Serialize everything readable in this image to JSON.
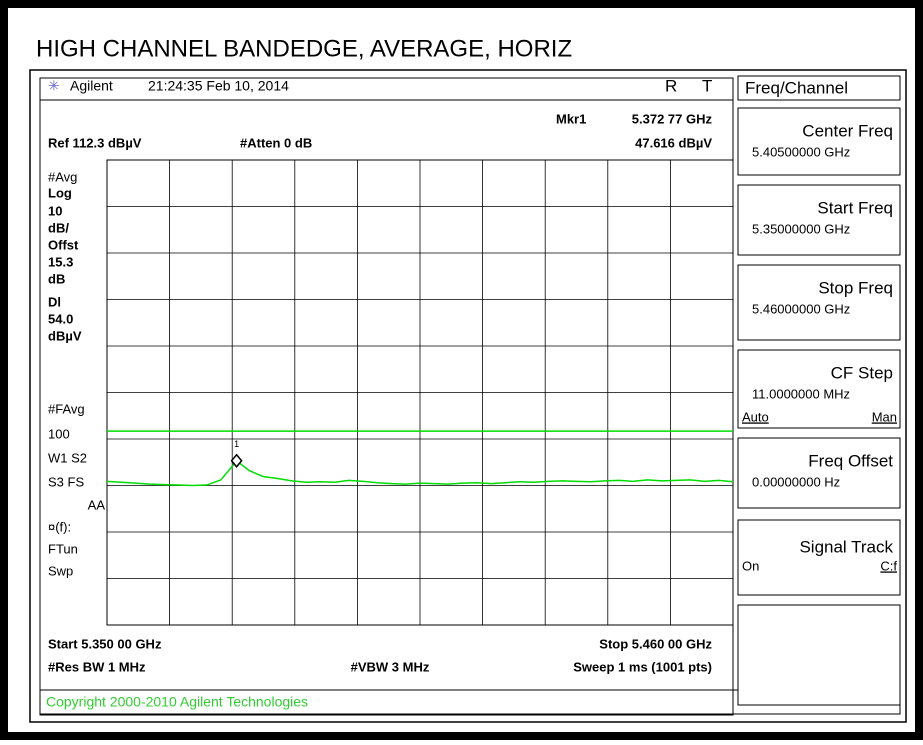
{
  "title": "HIGH CHANNEL BANDEDGE, AVERAGE, HORIZ",
  "header": {
    "brand": "Agilent",
    "timestamp": "21:24:35  Feb 10, 2014",
    "r": "R",
    "t": "T"
  },
  "status": {
    "ref": "Ref 112.3 dBµV",
    "atten": "#Atten 0 dB"
  },
  "left_panel": [
    "#Avg",
    "Log",
    "10",
    "dB/",
    "Offst",
    "15.3",
    "dB",
    "Dl",
    "54.0",
    "dBµV",
    "#FAvg",
    "100",
    "W1  S2",
    "S3  FS",
    "AA",
    "¤(f):",
    "FTun",
    "Swp"
  ],
  "footer": {
    "start": "Start 5.350 00 GHz",
    "stop": "Stop 5.460 00 GHz",
    "rbw": "#Res BW 1 MHz",
    "vbw": "#VBW 3 MHz",
    "sweep": "Sweep 1 ms (1001 pts)",
    "copyright": "Copyright 2000-2010 Agilent Technologies"
  },
  "softkeys": {
    "title": "Freq/Channel",
    "keys": [
      {
        "label": "Center Freq",
        "value": "5.40500000 GHz"
      },
      {
        "label": "Start Freq",
        "value": "5.35000000 GHz"
      },
      {
        "label": "Stop Freq",
        "value": "5.46000000 GHz"
      },
      {
        "label": "CF Step",
        "value": "11.0000000 MHz",
        "options": [
          "Auto",
          "Man"
        ]
      },
      {
        "label": "Freq Offset",
        "value": "0.00000000  Hz"
      },
      {
        "label": "Signal Track",
        "options": [
          "On",
          "C:f"
        ]
      }
    ]
  },
  "chart_data": {
    "type": "line",
    "x": [
      5.35,
      5.3525,
      5.355,
      5.3575,
      5.36,
      5.3625,
      5.365,
      5.3675,
      5.37,
      5.3728,
      5.375,
      5.3775,
      5.38,
      5.3825,
      5.385,
      5.3875,
      5.39,
      5.3925,
      5.395,
      5.3975,
      5.4,
      5.4025,
      5.405,
      5.4075,
      5.41,
      5.4125,
      5.415,
      5.4175,
      5.42,
      5.4225,
      5.425,
      5.4275,
      5.43,
      5.4325,
      5.435,
      5.4375,
      5.44,
      5.4425,
      5.445,
      5.4475,
      5.45,
      5.4525,
      5.455,
      5.4575,
      5.46
    ],
    "series": [
      {
        "color": "#00dd00",
        "values": [
          43.2,
          43.0,
          42.8,
          42.6,
          42.5,
          42.4,
          42.3,
          42.4,
          43.5,
          47.6,
          45.5,
          44.2,
          43.8,
          43.3,
          43.0,
          43.1,
          43.0,
          43.4,
          43.2,
          42.9,
          42.7,
          42.6,
          42.8,
          42.7,
          42.6,
          42.8,
          42.9,
          42.7,
          42.9,
          43.1,
          43.0,
          43.2,
          43.3,
          43.2,
          43.1,
          43.3,
          43.4,
          43.2,
          43.5,
          43.3,
          43.4,
          43.5,
          43.2,
          43.4,
          43.1
        ]
      }
    ],
    "xlim": [
      5.35,
      5.46
    ],
    "ylim": [
      12.3,
      112.3
    ],
    "xticks": [
      5.35,
      5.361,
      5.372,
      5.383,
      5.394,
      5.405,
      5.416,
      5.427,
      5.438,
      5.449,
      5.46
    ],
    "yticks": [
      12.3,
      22.3,
      32.3,
      42.3,
      52.3,
      62.3,
      72.3,
      82.3,
      92.3,
      102.3,
      112.3
    ],
    "grid": true,
    "display_line": 54,
    "display_line_color": "#00dd00",
    "marker": {
      "name": "1",
      "label": "Mkr1",
      "x": 5.37277,
      "x_label": "5.372 77 GHz",
      "value": 47.616,
      "value_label": "47.616 dBµV"
    }
  }
}
